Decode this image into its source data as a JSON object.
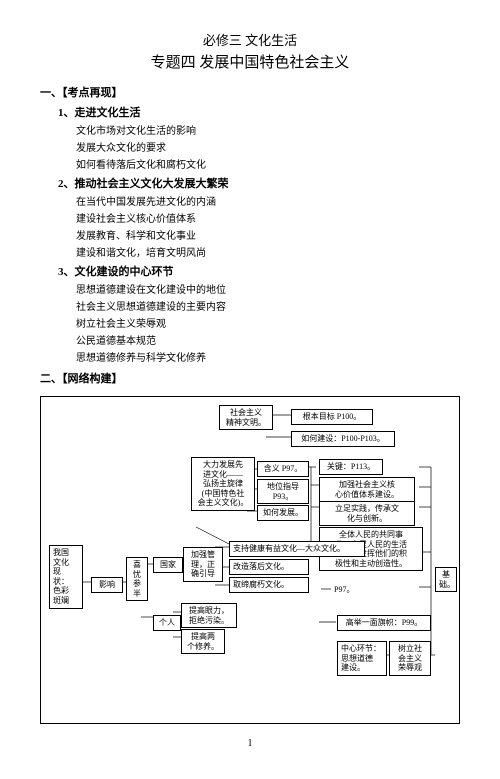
{
  "titles": {
    "line1": "必修三  文化生活",
    "line2": "专题四  发展中国特色社会主义"
  },
  "section1": {
    "header": "一、【考点再现】",
    "subs": [
      {
        "header": "1、走进文化生活",
        "items": [
          "文化市场对文化生活的影响",
          "发展大众文化的要求",
          "如何看待落后文化和腐朽文化"
        ]
      },
      {
        "header": "2、推动社会主义文化大发展大繁荣",
        "items": [
          "在当代中国发展先进文化的内涵",
          "建设社会主义核心价值体系",
          "发展教育、科学和文化事业",
          "建设和谐文化，培育文明风尚"
        ]
      },
      {
        "header": "3、文化建设的中心环节",
        "items": [
          "思想道德建设在文化建设中的地位",
          "社会主义思想道德建设的主要内容",
          "树立社会主义荣辱观",
          "公民道德基本规范",
          "思想道德修养与科学文化修养"
        ]
      }
    ]
  },
  "section2": {
    "header": "二、【网络构建】"
  },
  "diagram": {
    "boxes": {
      "shehui": "社会主义\n精神文明。",
      "genben": "根本目标 P100。",
      "ruhe": "如何建设：P100-P103。",
      "dali": "大力发展先\n进文化——\n弘扬主旋律\n(中国特色社\n会主义文化)。",
      "hanyi": "含义 P97。",
      "diwei": "地位指导\nP93。",
      "ruhe2": "如何发展。",
      "guanjian": "关键：P113。",
      "jiaqiang": "加强社会主义核\n心价值体系建设。",
      "lizu": "立足实践，传承文\n化与创新。",
      "quanti": "全体人民的共同事\n业，立足人民的生活\n实践，发挥他们的积\n极性和主动创造性。",
      "woguo": "我国\n文化\n现\n状：\n色彩\n斑斓",
      "yingxiang": "影响",
      "xiyou": "喜\n忧\n参\n半",
      "guojia": "国家",
      "geren": "个人",
      "jiaqiang2": "加强管\n理，正\n确引导",
      "tigao1": "提高眼力，\n拒绝污染。",
      "tigao2": "提高两\n个修养。",
      "zhichi": "支持健康有益文化—大众文化。",
      "gaizao": "改造落后文化。",
      "quchu": "取缔腐朽文化。",
      "p97": "P97。",
      "gaoju": "高举一面旗帜：P99。",
      "zhongxin": "中心环节：\n思想道德\n建设。",
      "shuli": "树立社\n会主义\n荣辱观",
      "jichu": "基\n础。"
    }
  },
  "pageNum": "1"
}
